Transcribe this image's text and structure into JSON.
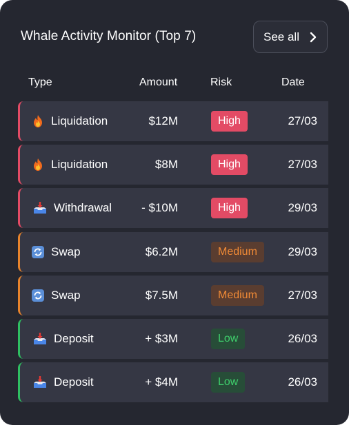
{
  "header": {
    "title": "Whale Activity Monitor (Top 7)",
    "see_all_label": "See all"
  },
  "columns": {
    "type": "Type",
    "amount": "Amount",
    "risk": "Risk",
    "date": "Date"
  },
  "rows": [
    {
      "icon": "fire-icon",
      "type": "Liquidation",
      "amount": "$12M",
      "risk": "High",
      "date": "27/03"
    },
    {
      "icon": "fire-icon",
      "type": "Liquidation",
      "amount": "$8M",
      "risk": "High",
      "date": "27/03"
    },
    {
      "icon": "inbox-tray-icon",
      "type": "Withdrawal",
      "amount": "- $10M",
      "risk": "High",
      "date": "29/03"
    },
    {
      "icon": "swap-arrows-icon",
      "type": "Swap",
      "amount": "$6.2M",
      "risk": "Medium",
      "date": "29/03"
    },
    {
      "icon": "swap-arrows-icon",
      "type": "Swap",
      "amount": "$7.5M",
      "risk": "Medium",
      "date": "27/03"
    },
    {
      "icon": "inbox-tray-icon",
      "type": "Deposit",
      "amount": "+ $3M",
      "risk": "Low",
      "date": "26/03"
    },
    {
      "icon": "inbox-tray-icon",
      "type": "Deposit",
      "amount": "+ $4M",
      "risk": "Low",
      "date": "26/03"
    }
  ],
  "colors": {
    "card": "#252730",
    "row": "#353744",
    "high": "#e34b65",
    "medium": "#e8842c",
    "low": "#2fbf62"
  }
}
